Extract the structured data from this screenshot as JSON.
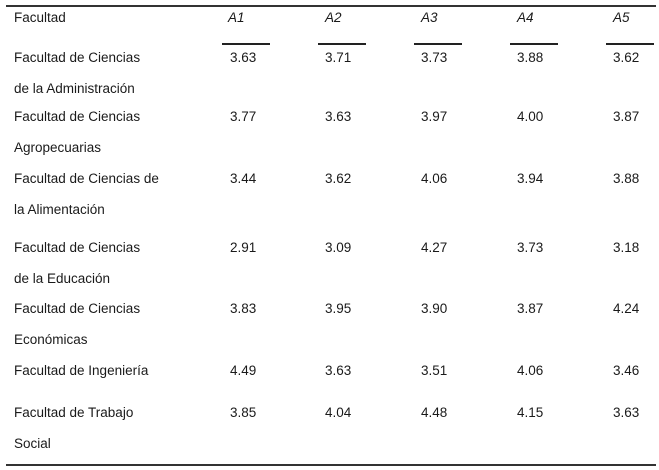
{
  "table": {
    "header": {
      "facultad": "Facultad",
      "cols": [
        "A1",
        "A2",
        "A3",
        "A4",
        "A5"
      ]
    },
    "rows": [
      {
        "name": [
          "Facultad de Ciencias",
          "de la Administración"
        ],
        "values": [
          "3.63",
          "3.71",
          "3.73",
          "3.88",
          "3.62"
        ]
      },
      {
        "name": [
          "Facultad de Ciencias",
          "Agropecuarias"
        ],
        "values": [
          "3.77",
          "3.63",
          "3.97",
          "4.00",
          "3.87"
        ]
      },
      {
        "name": [
          "Facultad de Ciencias de",
          "la Alimentación"
        ],
        "values": [
          "3.44",
          "3.62",
          "4.06",
          "3.94",
          "3.88"
        ]
      },
      {
        "name": [
          "Facultad de Ciencias",
          "de la Educación"
        ],
        "values": [
          "2.91",
          "3.09",
          "4.27",
          "3.73",
          "3.18"
        ]
      },
      {
        "name": [
          "Facultad de Ciencias",
          "Económicas"
        ],
        "values": [
          "3.83",
          "3.95",
          "3.90",
          "3.87",
          "4.24"
        ]
      },
      {
        "name": [
          "Facultad de Ingeniería"
        ],
        "values": [
          "4.49",
          "3.63",
          "3.51",
          "4.06",
          "3.46"
        ]
      },
      {
        "name": [
          "Facultad de Trabajo",
          "Social"
        ],
        "values": [
          "3.85",
          "4.04",
          "4.48",
          "4.15",
          "3.63"
        ]
      }
    ]
  }
}
